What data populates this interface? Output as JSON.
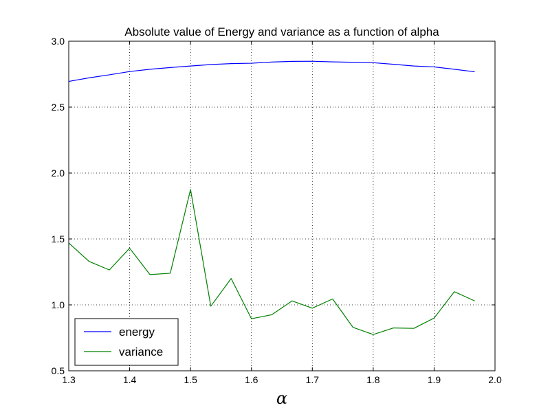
{
  "chart_data": {
    "type": "line",
    "title": "Absolute value of Energy and variance as a function of alpha",
    "xlabel": "α",
    "ylabel": "",
    "xlim": [
      1.3,
      2.0
    ],
    "ylim": [
      0.5,
      3.0
    ],
    "xticks": [
      "1.3",
      "1.4",
      "1.5",
      "1.6",
      "1.7",
      "1.8",
      "1.9",
      "2.0"
    ],
    "yticks": [
      "0.5",
      "1.0",
      "1.5",
      "2.0",
      "2.5",
      "3.0"
    ],
    "grid": true,
    "legend_position": "lower-left",
    "x": [
      1.3,
      1.3333,
      1.3667,
      1.4,
      1.4333,
      1.4667,
      1.5,
      1.5333,
      1.5667,
      1.6,
      1.6333,
      1.6667,
      1.7,
      1.7333,
      1.7667,
      1.8,
      1.8333,
      1.8667,
      1.9,
      1.9333,
      1.9667
    ],
    "series": [
      {
        "name": "energy",
        "color": "#0000ff",
        "values": [
          2.695,
          2.722,
          2.745,
          2.77,
          2.787,
          2.8,
          2.812,
          2.823,
          2.83,
          2.833,
          2.842,
          2.847,
          2.848,
          2.843,
          2.84,
          2.837,
          2.825,
          2.812,
          2.805,
          2.787,
          2.768
        ]
      },
      {
        "name": "variance",
        "color": "#008000",
        "values": [
          1.47,
          1.33,
          1.265,
          1.43,
          1.23,
          1.24,
          1.875,
          0.99,
          1.2,
          0.895,
          0.925,
          1.03,
          0.975,
          1.045,
          0.83,
          0.775,
          0.825,
          0.822,
          0.9,
          1.1,
          1.03
        ]
      }
    ]
  }
}
